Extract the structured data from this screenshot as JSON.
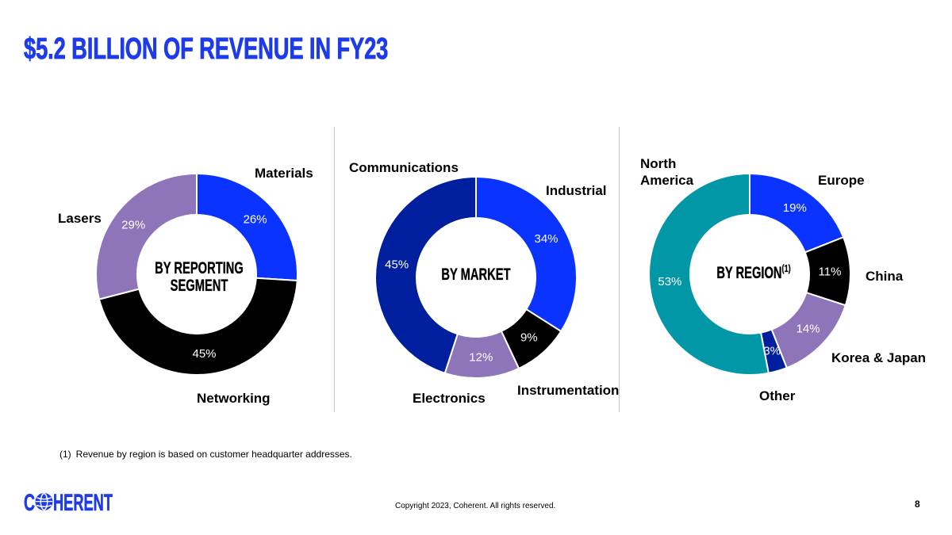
{
  "slide": {
    "title": "$5.2 BILLION OF REVENUE IN FY23",
    "footnote": {
      "marker": "(1)",
      "text": "Revenue by region is based on customer headquarter addresses."
    },
    "copyright": "Copyright 2023, Coherent. All rights reserved.",
    "page_number": "8"
  },
  "logo": {
    "text": "COHERENT",
    "icon": "globe-icon"
  },
  "colors": {
    "brand": "#1d3be8",
    "text": "#000000",
    "divider": "#c8c8c8",
    "value_label": "#ffffff"
  },
  "chart_data": [
    {
      "type": "pie",
      "title": "BY REPORTING SEGMENT",
      "categories": [
        "Materials",
        "Networking",
        "Lasers"
      ],
      "values": [
        26,
        45,
        29
      ],
      "unit": "%",
      "colors": [
        "#0a33ff",
        "#000000",
        "#8e74b9"
      ]
    },
    {
      "type": "pie",
      "title": "BY MARKET",
      "categories": [
        "Industrial",
        "Instrumentation",
        "Electronics",
        "Communications"
      ],
      "values": [
        34,
        9,
        12,
        45
      ],
      "unit": "%",
      "colors": [
        "#0a33ff",
        "#000000",
        "#8e74b9",
        "#001f9e"
      ]
    },
    {
      "type": "pie",
      "title": "BY REGION",
      "title_superscript": "(1)",
      "categories": [
        "Europe",
        "China",
        "Korea & Japan",
        "Other",
        "North America"
      ],
      "values": [
        19,
        11,
        14,
        3,
        53
      ],
      "unit": "%",
      "colors": [
        "#0a33ff",
        "#000000",
        "#8e74b9",
        "#001f9e",
        "#0197a6"
      ]
    }
  ]
}
